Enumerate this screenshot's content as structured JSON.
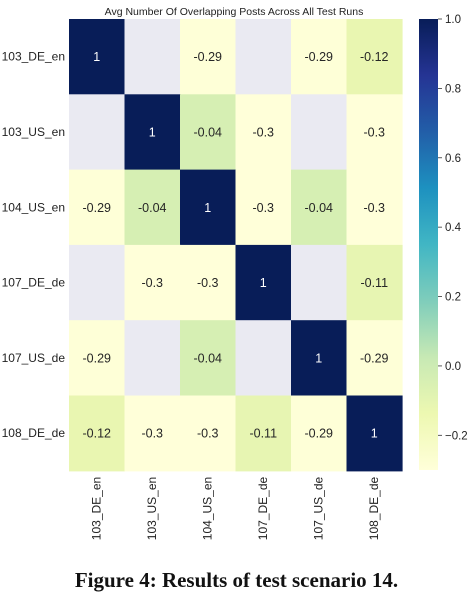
{
  "chart_data": {
    "type": "heatmap",
    "title": "Avg Number Of Overlapping Posts Across All Test Runs",
    "rows": [
      "103_DE_en",
      "103_US_en",
      "104_US_en",
      "107_DE_de",
      "107_US_de",
      "108_DE_de"
    ],
    "columns": [
      "103_DE_en",
      "103_US_en",
      "104_US_en",
      "107_DE_de",
      "107_US_de",
      "108_DE_de"
    ],
    "values": [
      [
        1,
        null,
        -0.29,
        null,
        -0.29,
        -0.12
      ],
      [
        null,
        1,
        -0.04,
        -0.3,
        null,
        -0.3
      ],
      [
        -0.29,
        -0.04,
        1,
        -0.3,
        -0.04,
        -0.3
      ],
      [
        null,
        -0.3,
        -0.3,
        1,
        null,
        -0.11
      ],
      [
        -0.29,
        null,
        -0.04,
        null,
        1,
        -0.29
      ],
      [
        -0.12,
        -0.3,
        -0.3,
        -0.11,
        -0.29,
        1
      ]
    ],
    "empty_cell_color": "#eaeaf2",
    "colormap": "YlGnBu",
    "colorbar": {
      "range": [
        -0.3,
        1.0
      ],
      "ticks": [
        -0.2,
        0.0,
        0.2,
        0.4,
        0.6,
        0.8,
        1.0
      ],
      "tick_labels": [
        "−0.2",
        "0.0",
        "0.2",
        "0.4",
        "0.6",
        "0.8",
        "1.0"
      ]
    },
    "grid": false,
    "legend": "colorbar-right"
  },
  "caption": "Figure 4: Results of test scenario 14."
}
